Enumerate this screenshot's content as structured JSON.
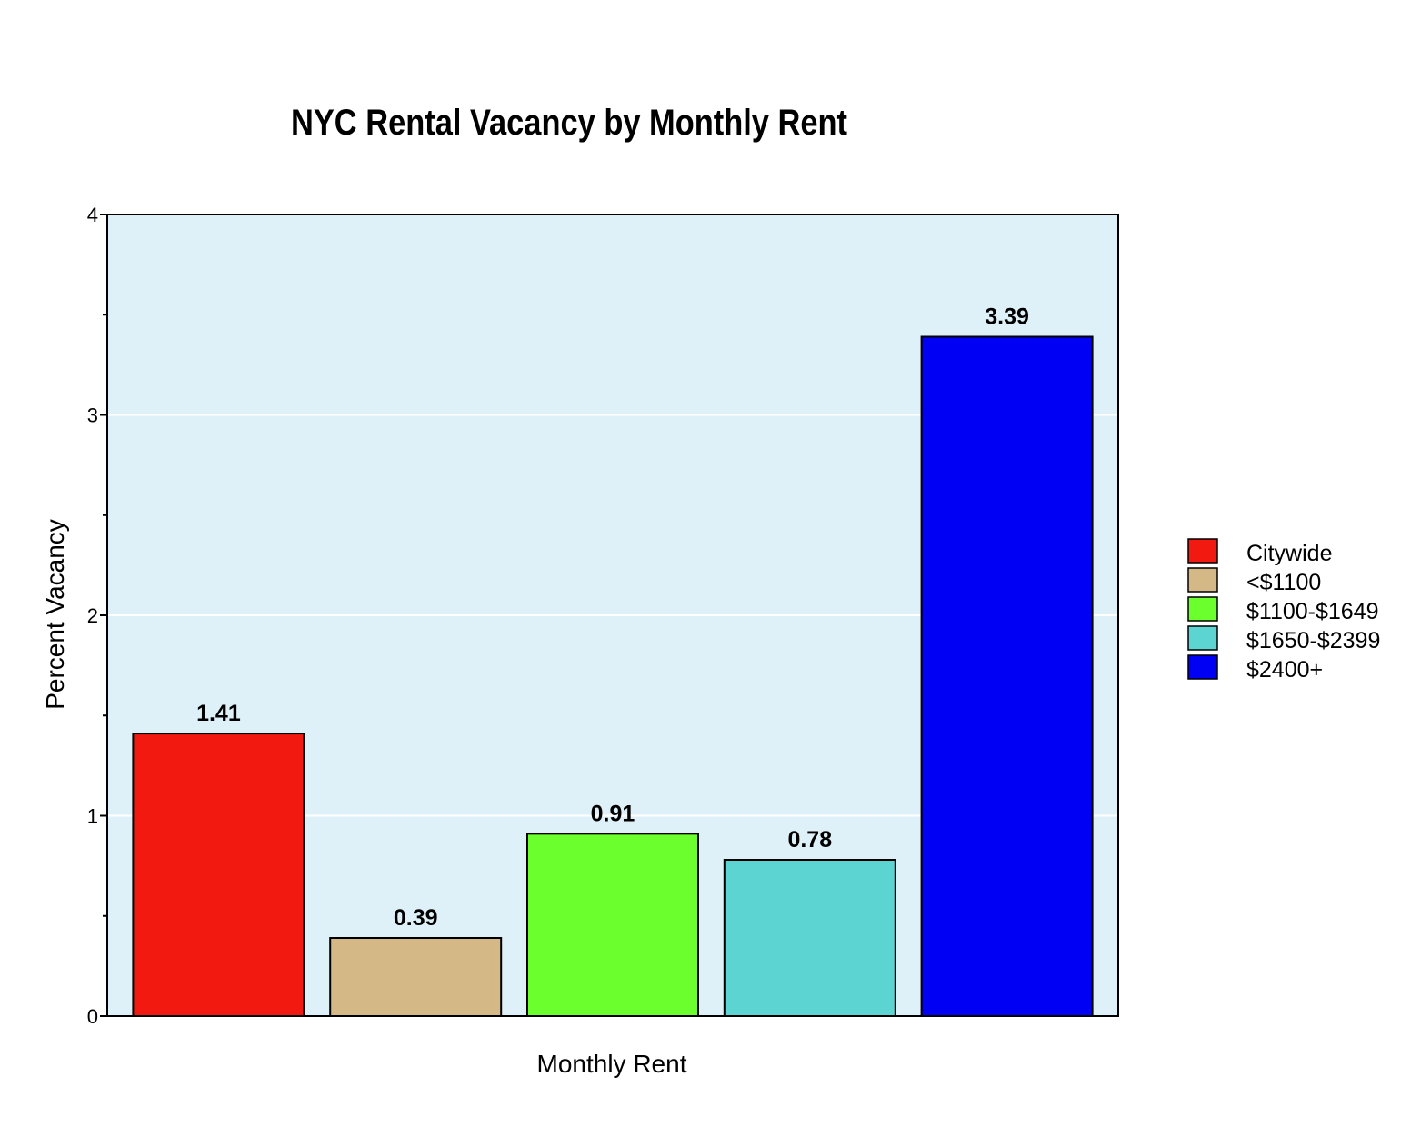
{
  "chart_data": {
    "type": "bar",
    "title": "NYC Rental Vacancy by Monthly Rent",
    "xlabel": "Monthly Rent",
    "ylabel": "Percent Vacancy",
    "ylim": [
      0,
      4
    ],
    "yticks": [
      0,
      1,
      2,
      3,
      4
    ],
    "grid": true,
    "legend_position": "right",
    "background_color": "#dff1f8",
    "gridline_color": "#ffffff",
    "categories": [
      "Citywide",
      "<$1100",
      "$1100-$1649",
      "$1650-$2399",
      "$2400+"
    ],
    "values": [
      1.41,
      0.39,
      0.91,
      0.78,
      3.39
    ],
    "value_labels": [
      "1.41",
      "0.39",
      "0.91",
      "0.78",
      "3.39"
    ],
    "colors": [
      "#f21a10",
      "#d4b886",
      "#6cff2e",
      "#5bd4d2",
      "#0000f5"
    ]
  }
}
